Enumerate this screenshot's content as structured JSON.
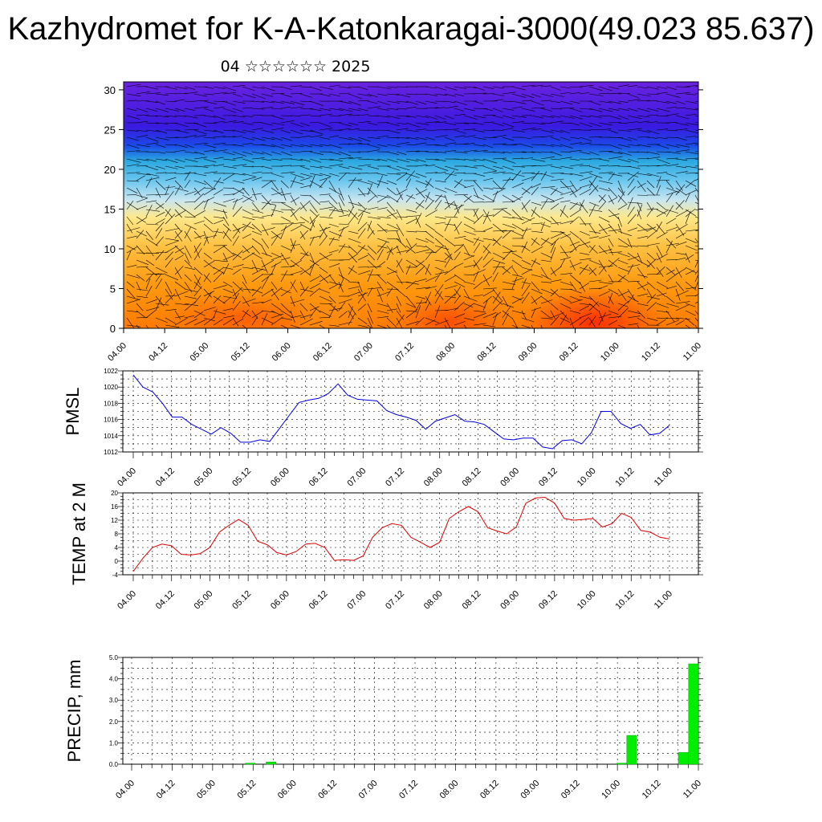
{
  "header": {
    "title": "Kazhydromet for K-A-Katonkaragai-3000(49.023 85.637)",
    "subtitle": "04 ☆☆☆☆☆☆ 2025"
  },
  "chart_data": [
    {
      "type": "heatmap",
      "title": "Vertical cross-section (colour field with wind barbs)",
      "x_ticks": [
        "04.00",
        "04.12",
        "05.00",
        "05.12",
        "06.00",
        "06.12",
        "07.00",
        "07.12",
        "08.00",
        "08.12",
        "09.00",
        "09.12",
        "10.00",
        "10.12",
        "11.00"
      ],
      "y_ticks": [
        0,
        5,
        10,
        15,
        20,
        25,
        30
      ],
      "ylim": [
        0,
        31
      ],
      "colors": {
        "low_level": "#ff6a00",
        "mid_level": "#ffe88a",
        "upper": "#2aa8e0",
        "top": "#6a22e0"
      },
      "grid": false
    },
    {
      "type": "line",
      "ylabel": "PMSL",
      "ylim": [
        1012,
        1022
      ],
      "y_ticks": [
        1012,
        1014,
        1016,
        1018,
        1020,
        1022
      ],
      "x_ticks": [
        "04.00",
        "04.12",
        "05.00",
        "05.12",
        "06.00",
        "06.12",
        "07.00",
        "07.12",
        "08.00",
        "08.12",
        "09.00",
        "09.12",
        "10.00",
        "10.12",
        "11.00"
      ],
      "values": [
        1021.5,
        1020.0,
        1019.4,
        1018.0,
        1016.3,
        1016.3,
        1015.4,
        1014.8,
        1014.2,
        1015.0,
        1014.3,
        1013.2,
        1013.2,
        1013.5,
        1013.3,
        1014.9,
        1016.5,
        1018.1,
        1018.4,
        1018.6,
        1019.2,
        1020.4,
        1019.0,
        1018.5,
        1018.4,
        1018.3,
        1017.1,
        1016.6,
        1016.3,
        1015.9,
        1014.8,
        1015.8,
        1016.2,
        1016.6,
        1015.8,
        1015.7,
        1015.4,
        1014.5,
        1013.6,
        1013.5,
        1013.7,
        1013.7,
        1012.6,
        1012.4,
        1013.4,
        1013.5,
        1013.0,
        1014.4,
        1017.0,
        1017.0,
        1015.5,
        1014.9,
        1015.4,
        1014.1,
        1014.3,
        1015.3
      ],
      "color": "#0000e0",
      "grid": true
    },
    {
      "type": "line",
      "ylabel": "TEMP at 2 M",
      "ylim": [
        -4,
        20
      ],
      "y_ticks": [
        -4,
        0,
        4,
        8,
        12,
        16,
        20
      ],
      "x_ticks": [
        "04.00",
        "04.12",
        "05.00",
        "05.12",
        "06.00",
        "06.12",
        "07.00",
        "07.12",
        "08.00",
        "08.12",
        "09.00",
        "09.12",
        "10.00",
        "10.12",
        "11.00"
      ],
      "values": [
        -3.0,
        0.8,
        4.0,
        5.0,
        4.5,
        2.0,
        1.8,
        2.2,
        4.0,
        8.5,
        10.5,
        12.2,
        10.5,
        5.8,
        4.8,
        2.5,
        1.8,
        2.8,
        5.0,
        5.2,
        4.0,
        0.2,
        0.4,
        0.2,
        1.5,
        7.0,
        9.8,
        11.0,
        10.5,
        7.0,
        5.5,
        4.0,
        5.5,
        12.5,
        14.5,
        16.0,
        14.5,
        9.8,
        8.8,
        8.0,
        10.0,
        17.0,
        18.5,
        18.7,
        17.0,
        12.5,
        12.0,
        12.2,
        12.5,
        10.0,
        11.0,
        14.0,
        12.8,
        9.0,
        8.5,
        7.0,
        6.5
      ],
      "color": "#e00000",
      "grid": true
    },
    {
      "type": "bar",
      "ylabel": "PRECIP, mm",
      "ylim": [
        0,
        5
      ],
      "y_ticks": [
        "0.0",
        "1.0",
        "2.0",
        "3.0",
        "4.0",
        "5.0"
      ],
      "x_ticks": [
        "04.00",
        "04.12",
        "05.00",
        "05.12",
        "06.00",
        "06.12",
        "07.00",
        "07.12",
        "08.00",
        "08.12",
        "09.00",
        "09.12",
        "10.00",
        "10.12",
        "11.00"
      ],
      "values": [
        0,
        0,
        0,
        0,
        0,
        0,
        0,
        0,
        0,
        0,
        0,
        0,
        0.05,
        0,
        0.1,
        0,
        0,
        0,
        0,
        0,
        0,
        0,
        0,
        0,
        0,
        0,
        0,
        0,
        0,
        0,
        0,
        0,
        0,
        0,
        0,
        0,
        0,
        0,
        0,
        0,
        0,
        0,
        0,
        0,
        0,
        0,
        0,
        0,
        0.05,
        1.35,
        0,
        0,
        0,
        0,
        0.55,
        4.7
      ],
      "color": "#00ee00",
      "grid": true
    }
  ]
}
